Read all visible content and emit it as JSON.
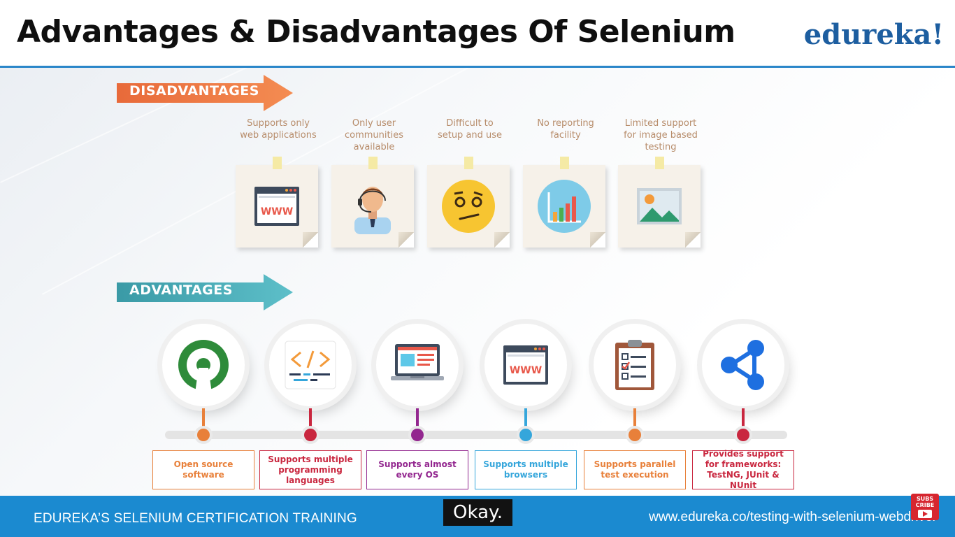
{
  "title": "Advantages & Disadvantages Of Selenium",
  "brand": "edureka!",
  "sections": {
    "disadvantages_label": "DISADVANTAGES",
    "advantages_label": "ADVANTAGES"
  },
  "disadvantages": [
    {
      "caption": "Supports only\nweb applications",
      "icon": "www-browser-icon"
    },
    {
      "caption": "Only user\ncommunities\navailable",
      "icon": "support-agent-icon"
    },
    {
      "caption": "Difficult to\nsetup and use",
      "icon": "confused-face-icon"
    },
    {
      "caption": "No reporting\nfacility",
      "icon": "bar-chart-icon"
    },
    {
      "caption": "Limited support\nfor image based\ntesting",
      "icon": "image-icon"
    }
  ],
  "advantages": [
    {
      "label": "Open source\nsoftware",
      "color": "#e8803a",
      "icon": "open-source-icon"
    },
    {
      "label": "Supports multiple\nprogramming\nlanguages",
      "color": "#c9273f",
      "icon": "code-icon"
    },
    {
      "label": "Supports almost\nevery OS",
      "color": "#93278f",
      "icon": "laptop-icon"
    },
    {
      "label": "Supports multiple\nbrowsers",
      "color": "#35a6db",
      "icon": "www-browser-icon"
    },
    {
      "label": "Supports parallel\ntest execution",
      "color": "#e8803a",
      "icon": "checklist-clipboard-icon"
    },
    {
      "label": "Provides support\nfor frameworks:\nTestNG, JUnit & NUnit",
      "color": "#c9273f",
      "icon": "share-icon"
    }
  ],
  "footer": {
    "left": "EDUREKA’S SELENIUM CERTIFICATION TRAINING",
    "right": "www.edureka.co/testing-with-selenium-webdriver"
  },
  "caption_text": "Okay.",
  "subscribe_text": "SUBS\nCRIBE"
}
